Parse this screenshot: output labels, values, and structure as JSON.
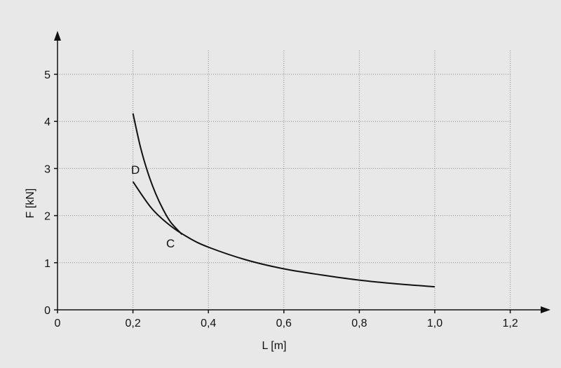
{
  "chart_data": {
    "type": "line",
    "title": "",
    "xlabel": "L [m]",
    "ylabel": "F [kN]",
    "xlim": [
      0,
      1.2
    ],
    "ylim": [
      0,
      5
    ],
    "x_ticks": [
      0,
      0.2,
      0.4,
      0.6,
      0.8,
      1.0,
      1.2
    ],
    "x_tick_labels": [
      "0",
      "0,2",
      "0,4",
      "0,6",
      "0,8",
      "1,0",
      "1,2"
    ],
    "y_ticks": [
      0,
      1,
      2,
      3,
      4,
      5
    ],
    "y_tick_labels": [
      "0",
      "1",
      "2",
      "3",
      "4",
      "5"
    ],
    "grid": true,
    "series": [
      {
        "name": "D",
        "x": [
          0.2,
          0.22,
          0.24,
          0.26,
          0.28,
          0.3,
          0.33
        ],
        "y": [
          4.17,
          3.45,
          2.9,
          2.47,
          2.13,
          1.86,
          1.6
        ]
      },
      {
        "name": "C",
        "x": [
          0.2,
          0.25,
          0.3,
          0.35,
          0.4,
          0.5,
          0.6,
          0.7,
          0.8,
          0.9,
          1.0
        ],
        "y": [
          2.72,
          2.15,
          1.78,
          1.52,
          1.33,
          1.06,
          0.87,
          0.74,
          0.63,
          0.55,
          0.49
        ]
      }
    ]
  }
}
